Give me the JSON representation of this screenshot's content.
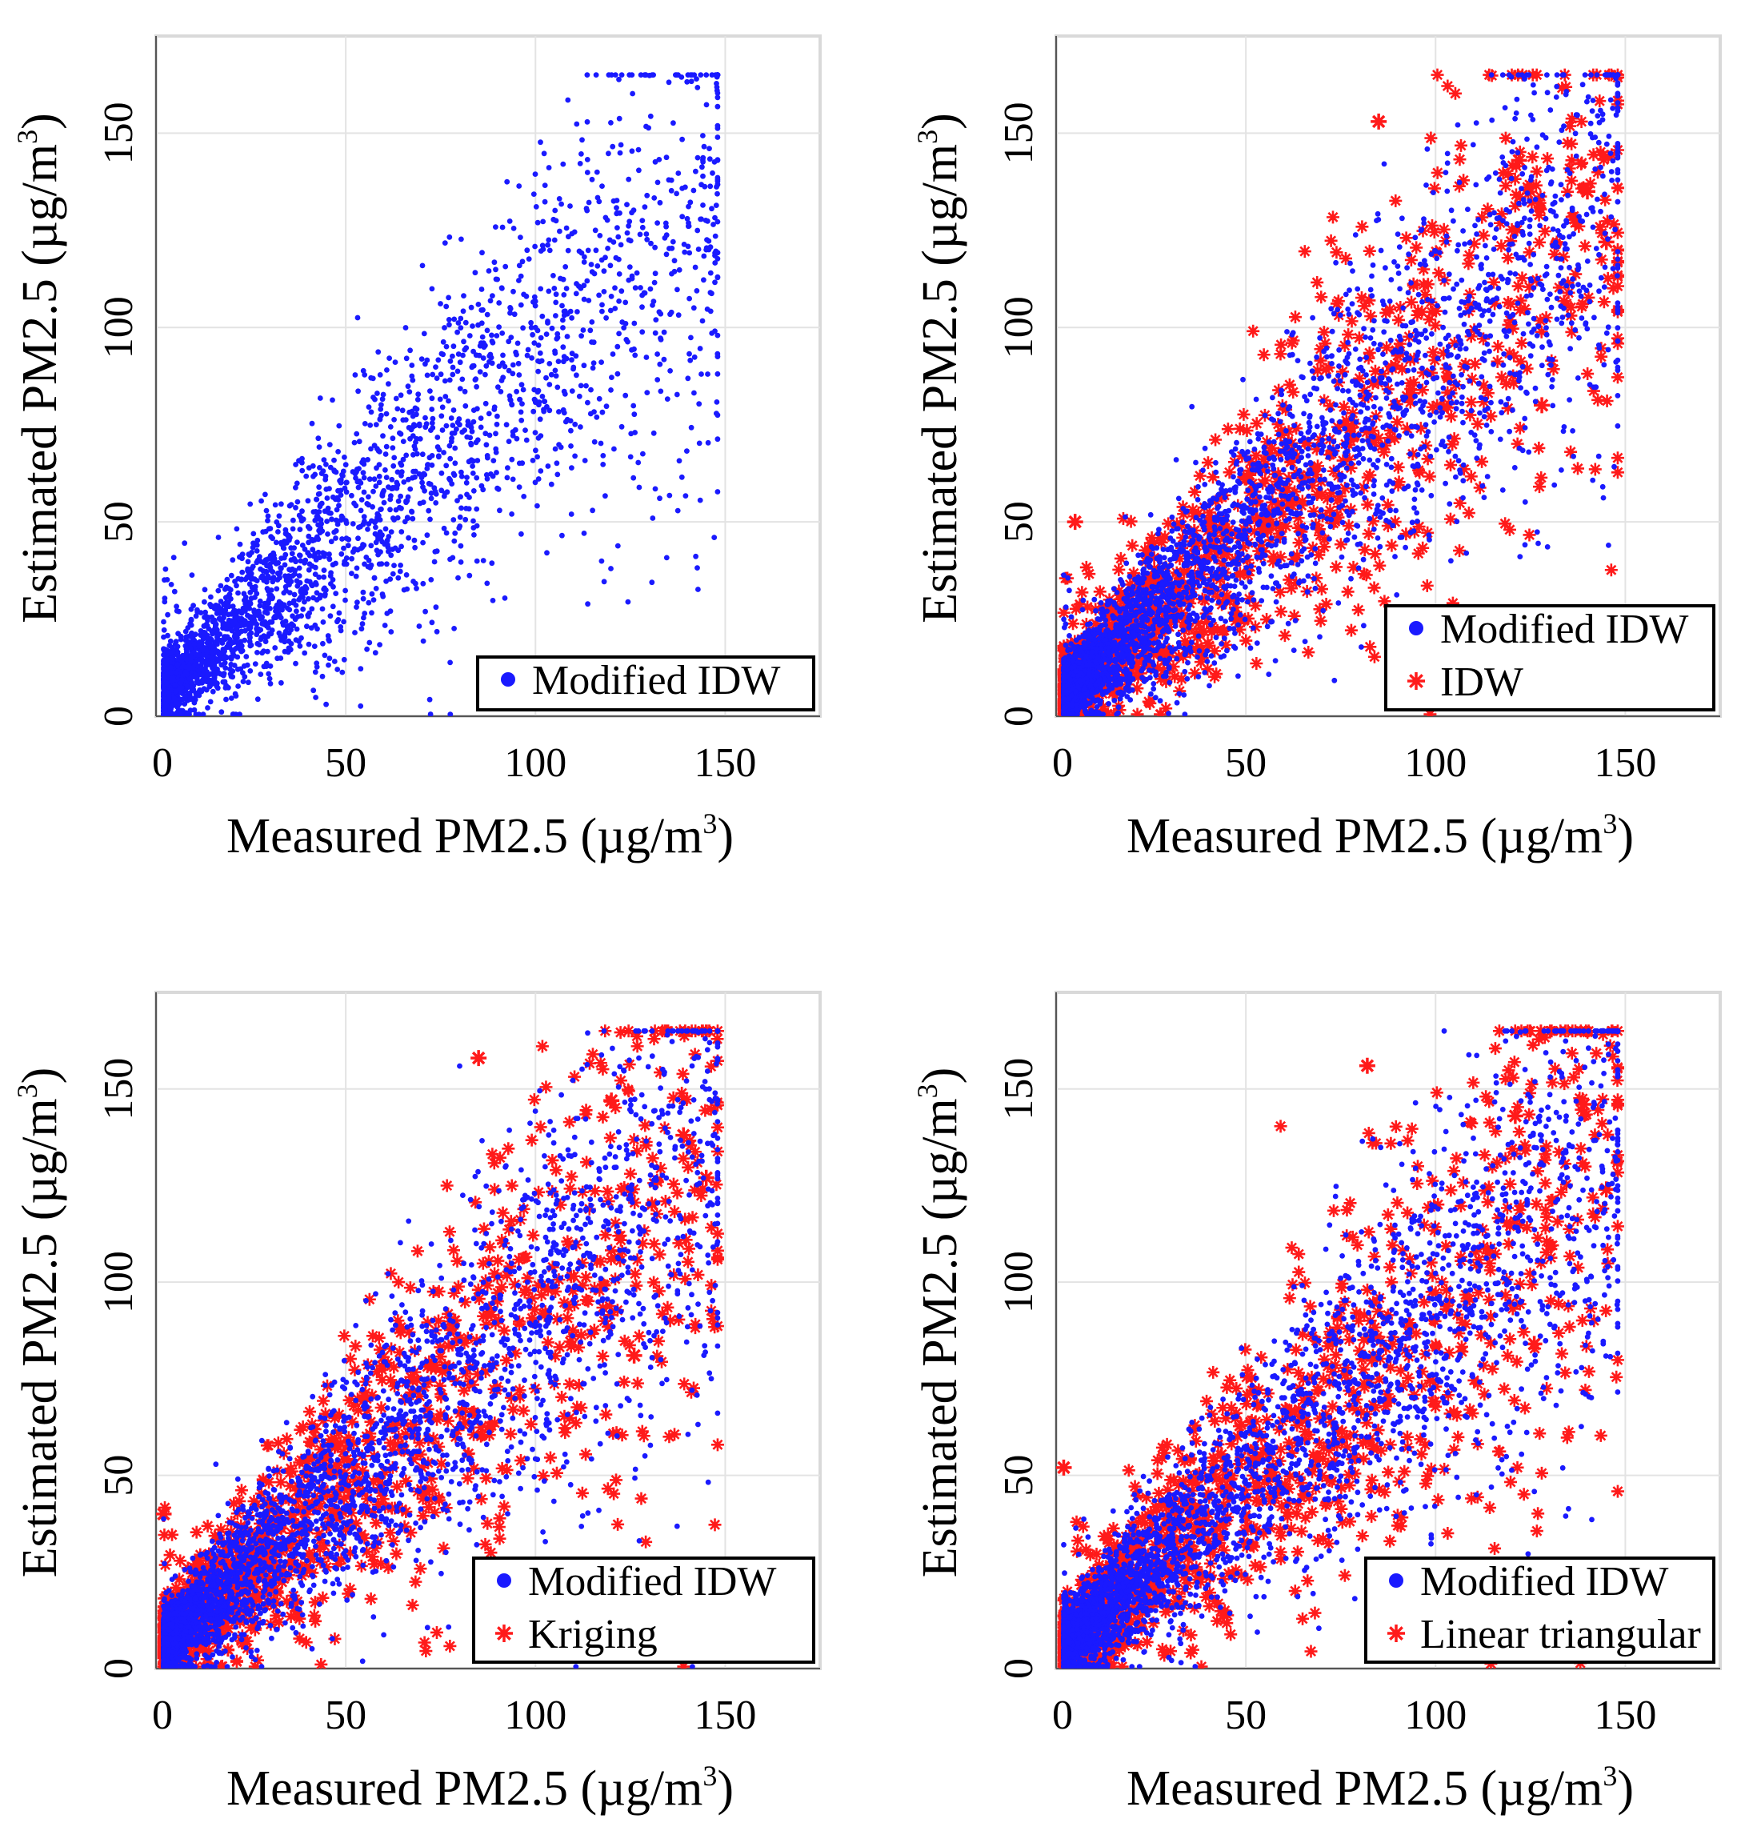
{
  "chart_data": [
    {
      "type": "scatter",
      "panel": "top-left",
      "xlabel": "Measured PM2.5 (µg/m3)",
      "ylabel": "Estimated PM2.5 (µg/m3)",
      "xlabel_parts": {
        "main": "Measured PM2.5 (µg/m",
        "sup": "3",
        "close": ")"
      },
      "ylabel_parts": {
        "main": "Estimated PM2.5 (µg/m",
        "sup": "3",
        "close": ")"
      },
      "xlim": [
        0,
        175
      ],
      "ylim": [
        0,
        175
      ],
      "xticks": [
        "0",
        "50",
        "100",
        "150"
      ],
      "yticks": [
        "0",
        "50",
        "100",
        "150"
      ],
      "grid": true,
      "legend_position": "bottom-right",
      "series": [
        {
          "name": "Modified IDW",
          "marker": "dot",
          "color": "#1a1aff",
          "spread": 0.22,
          "outlier_rate": 0.03
        }
      ],
      "sample_points": [
        [
          5,
          8
        ],
        [
          20,
          22
        ],
        [
          40,
          42
        ],
        [
          60,
          58
        ],
        [
          80,
          75
        ],
        [
          100,
          100
        ],
        [
          120,
          108
        ],
        [
          140,
          128
        ],
        [
          145,
          120
        ]
      ]
    },
    {
      "type": "scatter",
      "panel": "top-right",
      "xlabel": "Measured PM2.5 (µg/m3)",
      "ylabel": "Estimated PM2.5 (µg/m3)",
      "xlabel_parts": {
        "main": "Measured PM2.5 (µg/m",
        "sup": "3",
        "close": ")"
      },
      "ylabel_parts": {
        "main": "Estimated PM2.5 (µg/m",
        "sup": "3",
        "close": ")"
      },
      "xlim": [
        0,
        175
      ],
      "ylim": [
        0,
        175
      ],
      "xticks": [
        "0",
        "50",
        "100",
        "150"
      ],
      "yticks": [
        "0",
        "50",
        "100",
        "150"
      ],
      "grid": true,
      "legend_position": "bottom-right",
      "series": [
        {
          "name": "Modified IDW",
          "marker": "dot",
          "color": "#1a1aff",
          "spread": 0.2,
          "outlier_rate": 0.02
        },
        {
          "name": "IDW",
          "marker": "star",
          "color": "#ff1a1a",
          "spread": 0.26,
          "outlier_rate": 0.04
        }
      ],
      "sample_points": [
        [
          5,
          50
        ],
        [
          85,
          153
        ],
        [
          122,
          143
        ],
        [
          128,
          80
        ],
        [
          140,
          135
        ],
        [
          145,
          122
        ]
      ]
    },
    {
      "type": "scatter",
      "panel": "bottom-left",
      "xlabel": "Measured PM2.5 (µg/m3)",
      "ylabel": "Estimated PM2.5 (µg/m3)",
      "xlabel_parts": {
        "main": "Measured PM2.5 (µg/m",
        "sup": "3",
        "close": ")"
      },
      "ylabel_parts": {
        "main": "Estimated PM2.5 (µg/m",
        "sup": "3",
        "close": ")"
      },
      "xlim": [
        0,
        175
      ],
      "ylim": [
        0,
        175
      ],
      "xticks": [
        "0",
        "50",
        "100",
        "150"
      ],
      "yticks": [
        "0",
        "50",
        "100",
        "150"
      ],
      "grid": true,
      "legend_position": "bottom-right",
      "series": [
        {
          "name": "Modified IDW",
          "marker": "dot",
          "color": "#1a1aff",
          "spread": 0.2,
          "outlier_rate": 0.02
        },
        {
          "name": "Kriging",
          "marker": "star",
          "color": "#ff1a1a",
          "spread": 0.26,
          "outlier_rate": 0.04
        }
      ],
      "sample_points": [
        [
          2,
          40
        ],
        [
          85,
          158
        ],
        [
          120,
          147
        ],
        [
          126,
          81
        ],
        [
          139,
          138
        ],
        [
          145,
          127
        ]
      ]
    },
    {
      "type": "scatter",
      "panel": "bottom-right",
      "xlabel": "Measured PM2.5 (µg/m3)",
      "ylabel": "Estimated PM2.5 (µg/m3)",
      "xlabel_parts": {
        "main": "Measured PM2.5 (µg/m",
        "sup": "3",
        "close": ")"
      },
      "ylabel_parts": {
        "main": "Estimated PM2.5 (µg/m",
        "sup": "3",
        "close": ")"
      },
      "xlim": [
        0,
        175
      ],
      "ylim": [
        0,
        175
      ],
      "xticks": [
        "0",
        "50",
        "100",
        "150"
      ],
      "yticks": [
        "0",
        "50",
        "100",
        "150"
      ],
      "grid": true,
      "legend_position": "bottom-right",
      "series": [
        {
          "name": "Modified IDW",
          "marker": "dot",
          "color": "#1a1aff",
          "spread": 0.2,
          "outlier_rate": 0.02
        },
        {
          "name": "Linear triangular",
          "marker": "star",
          "color": "#ff1a1a",
          "spread": 0.26,
          "outlier_rate": 0.04
        }
      ],
      "sample_points": [
        [
          2,
          52
        ],
        [
          82,
          156
        ],
        [
          121,
          143
        ],
        [
          126,
          84
        ],
        [
          139,
          146
        ],
        [
          145,
          124
        ]
      ]
    }
  ]
}
